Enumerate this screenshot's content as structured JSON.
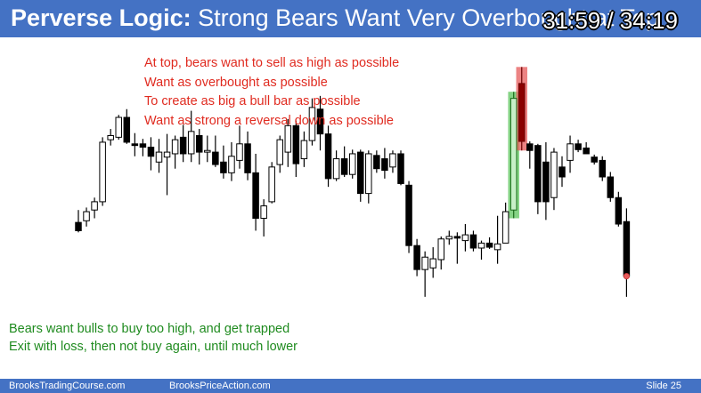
{
  "slide": {
    "title_bold": "Perverse Logic:",
    "title_rest": " Strong Bears Want Very Overbought at Top",
    "timer": "31:59 / 34:19",
    "red_notes": [
      "At top, bears want to sell as high as possible",
      "Want as overbought as possible",
      "To create as big a bull bar as possible",
      "Want as strong a reversal down as possible"
    ],
    "green_notes": [
      "Bears want bulls to buy too high, and get trapped",
      "Exit with loss, then not buy again, until much lower"
    ],
    "footer": {
      "site1": "BrooksTradingCourse.com",
      "site2": "BrooksPriceAction.com",
      "slide_number": "Slide  25"
    },
    "colors": {
      "header_bg": "#4472c4",
      "red_text": "#e02b20",
      "green_text": "#1f8b1f",
      "highlight_green": "#5cc45c",
      "highlight_red": "#e65a5a"
    }
  },
  "chart_data": {
    "type": "candlestick",
    "title": "",
    "note": "unlabeled price chart; values in relative price units (higher = higher price)",
    "bars": [
      {
        "o": 145,
        "h": 160,
        "l": 133,
        "c": 135
      },
      {
        "o": 147,
        "h": 163,
        "l": 140,
        "c": 158
      },
      {
        "o": 160,
        "h": 175,
        "l": 150,
        "c": 170
      },
      {
        "o": 170,
        "h": 248,
        "l": 165,
        "c": 242
      },
      {
        "o": 245,
        "h": 258,
        "l": 238,
        "c": 250
      },
      {
        "o": 248,
        "h": 275,
        "l": 245,
        "c": 272
      },
      {
        "o": 272,
        "h": 282,
        "l": 240,
        "c": 242
      },
      {
        "o": 240,
        "h": 253,
        "l": 225,
        "c": 238
      },
      {
        "o": 240,
        "h": 246,
        "l": 225,
        "c": 236
      },
      {
        "o": 236,
        "h": 248,
        "l": 208,
        "c": 225
      },
      {
        "o": 218,
        "h": 246,
        "l": 205,
        "c": 230
      },
      {
        "o": 224,
        "h": 252,
        "l": 178,
        "c": 230
      },
      {
        "o": 228,
        "h": 250,
        "l": 210,
        "c": 245
      },
      {
        "o": 248,
        "h": 263,
        "l": 218,
        "c": 228
      },
      {
        "o": 228,
        "h": 280,
        "l": 218,
        "c": 255
      },
      {
        "o": 250,
        "h": 258,
        "l": 215,
        "c": 230
      },
      {
        "o": 230,
        "h": 250,
        "l": 218,
        "c": 232
      },
      {
        "o": 230,
        "h": 250,
        "l": 212,
        "c": 215
      },
      {
        "o": 218,
        "h": 238,
        "l": 198,
        "c": 205
      },
      {
        "o": 205,
        "h": 242,
        "l": 195,
        "c": 225
      },
      {
        "o": 220,
        "h": 262,
        "l": 210,
        "c": 240
      },
      {
        "o": 240,
        "h": 255,
        "l": 196,
        "c": 205
      },
      {
        "o": 205,
        "h": 228,
        "l": 135,
        "c": 150
      },
      {
        "o": 150,
        "h": 173,
        "l": 128,
        "c": 165
      },
      {
        "o": 170,
        "h": 218,
        "l": 168,
        "c": 212
      },
      {
        "o": 215,
        "h": 250,
        "l": 205,
        "c": 245
      },
      {
        "o": 230,
        "h": 270,
        "l": 212,
        "c": 262
      },
      {
        "o": 262,
        "h": 268,
        "l": 200,
        "c": 216
      },
      {
        "o": 222,
        "h": 255,
        "l": 212,
        "c": 244
      },
      {
        "o": 244,
        "h": 295,
        "l": 238,
        "c": 284
      },
      {
        "o": 282,
        "h": 298,
        "l": 232,
        "c": 252
      },
      {
        "o": 252,
        "h": 262,
        "l": 188,
        "c": 198
      },
      {
        "o": 198,
        "h": 232,
        "l": 195,
        "c": 222
      },
      {
        "o": 222,
        "h": 237,
        "l": 200,
        "c": 203
      },
      {
        "o": 203,
        "h": 233,
        "l": 198,
        "c": 228
      },
      {
        "o": 230,
        "h": 233,
        "l": 170,
        "c": 180
      },
      {
        "o": 180,
        "h": 232,
        "l": 168,
        "c": 228
      },
      {
        "o": 226,
        "h": 232,
        "l": 205,
        "c": 210
      },
      {
        "o": 222,
        "h": 235,
        "l": 198,
        "c": 208
      },
      {
        "o": 212,
        "h": 232,
        "l": 205,
        "c": 228
      },
      {
        "o": 228,
        "h": 232,
        "l": 190,
        "c": 192
      },
      {
        "o": 190,
        "h": 195,
        "l": 108,
        "c": 117
      },
      {
        "o": 117,
        "h": 125,
        "l": 80,
        "c": 88
      },
      {
        "o": 88,
        "h": 110,
        "l": 55,
        "c": 103
      },
      {
        "o": 90,
        "h": 115,
        "l": 78,
        "c": 101
      },
      {
        "o": 100,
        "h": 128,
        "l": 88,
        "c": 125
      },
      {
        "o": 125,
        "h": 135,
        "l": 118,
        "c": 128
      },
      {
        "o": 128,
        "h": 133,
        "l": 95,
        "c": 126
      },
      {
        "o": 123,
        "h": 143,
        "l": 110,
        "c": 130
      },
      {
        "o": 130,
        "h": 135,
        "l": 110,
        "c": 114
      },
      {
        "o": 114,
        "h": 123,
        "l": 100,
        "c": 120
      },
      {
        "o": 120,
        "h": 127,
        "l": 113,
        "c": 115
      },
      {
        "o": 112,
        "h": 153,
        "l": 95,
        "c": 119
      },
      {
        "o": 120,
        "h": 169,
        "l": 120,
        "c": 158
      },
      {
        "o": 160,
        "h": 303,
        "l": 150,
        "c": 295
      },
      {
        "o": 313,
        "h": 333,
        "l": 232,
        "c": 243
      },
      {
        "o": 240,
        "h": 243,
        "l": 210,
        "c": 232
      },
      {
        "o": 238,
        "h": 240,
        "l": 155,
        "c": 170
      },
      {
        "o": 218,
        "h": 242,
        "l": 148,
        "c": 170
      },
      {
        "o": 175,
        "h": 235,
        "l": 160,
        "c": 230
      },
      {
        "o": 212,
        "h": 225,
        "l": 188,
        "c": 200
      },
      {
        "o": 220,
        "h": 250,
        "l": 205,
        "c": 240
      },
      {
        "o": 240,
        "h": 245,
        "l": 230,
        "c": 233
      },
      {
        "o": 235,
        "h": 242,
        "l": 228,
        "c": 228
      },
      {
        "o": 224,
        "h": 227,
        "l": 215,
        "c": 218
      },
      {
        "o": 220,
        "h": 225,
        "l": 195,
        "c": 200
      },
      {
        "o": 200,
        "h": 206,
        "l": 170,
        "c": 175
      },
      {
        "o": 175,
        "h": 182,
        "l": 140,
        "c": 143
      },
      {
        "o": 146,
        "h": 162,
        "l": 55,
        "c": 80
      }
    ],
    "highlighted_bull_bar_index": 54,
    "highlighted_bear_bar_index": 55,
    "marked_last_close": true
  }
}
